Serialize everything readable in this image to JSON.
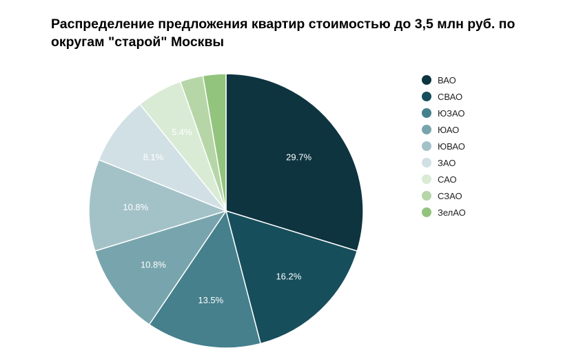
{
  "chart_data": {
    "type": "pie",
    "title": "Распределение предложения квартир стоимостью до 3,5 млн руб. по округам \"старой\" Москвы",
    "legend_position": "right",
    "slices": [
      {
        "name": "ВАО",
        "value": 29.7,
        "label": "29.7%",
        "color": "#0e3440"
      },
      {
        "name": "СВАО",
        "value": 16.2,
        "label": "16.2%",
        "color": "#174e5c"
      },
      {
        "name": "ЮЗАО",
        "value": 13.5,
        "label": "13.5%",
        "color": "#45808c"
      },
      {
        "name": "ЮАО",
        "value": 10.8,
        "label": "10.8%",
        "color": "#78a5ad"
      },
      {
        "name": "ЮВАО",
        "value": 10.8,
        "label": "10.8%",
        "color": "#a3c2c8"
      },
      {
        "name": "ЗАО",
        "value": 8.1,
        "label": "8.1%",
        "color": "#d1e0e4"
      },
      {
        "name": "САО",
        "value": 5.4,
        "label": "5.4%",
        "color": "#d9ebd5"
      },
      {
        "name": "СЗАО",
        "value": 2.7,
        "label": "",
        "color": "#b6d6a8"
      },
      {
        "name": "ЗелАО",
        "value": 2.7,
        "label": "",
        "color": "#93c47d"
      }
    ]
  }
}
